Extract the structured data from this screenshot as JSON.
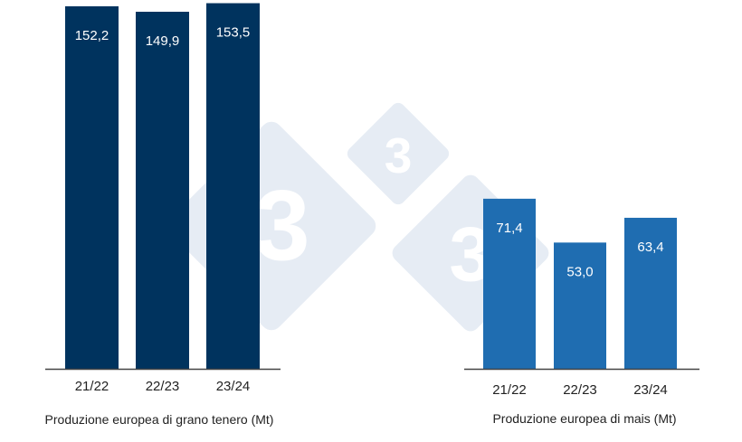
{
  "chart_data": [
    {
      "type": "bar",
      "title": "Produzione europea di grano tenero (Mt)",
      "categories": [
        "21/22",
        "22/23",
        "23/24"
      ],
      "values": [
        152.2,
        149.9,
        153.5
      ],
      "value_labels": [
        "152,2",
        "149,9",
        "153,5"
      ],
      "color": "#00335e",
      "grid": false
    },
    {
      "type": "bar",
      "title": "Produzione europea di mais (Mt)",
      "categories": [
        "21/22",
        "22/23",
        "23/24"
      ],
      "values": [
        71.4,
        53.0,
        63.4
      ],
      "value_labels": [
        "71,4",
        "53,0",
        "63,4"
      ],
      "color": "#1f6db1",
      "grid": false
    }
  ],
  "watermark": {
    "text": "3",
    "color": "#e6ecf4"
  }
}
